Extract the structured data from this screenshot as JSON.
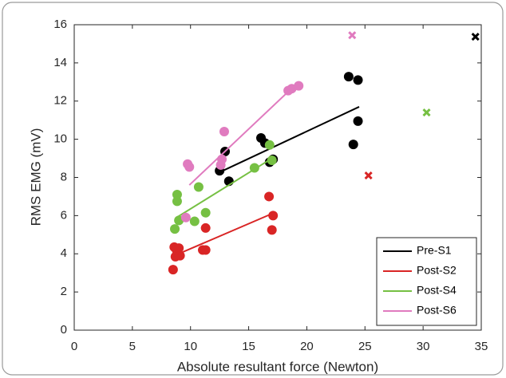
{
  "chart_data": {
    "type": "scatter",
    "x_label": "Absolute resultant force (Newton)",
    "y_label": "RMS EMG (mV)",
    "xlim": [
      0,
      35
    ],
    "xticks": [
      0,
      5,
      10,
      15,
      20,
      25,
      30,
      35
    ],
    "ylim": [
      0,
      16
    ],
    "yticks": [
      0,
      2,
      4,
      6,
      8,
      10,
      12,
      14,
      16
    ],
    "legend": "lower right",
    "series": [
      {
        "name": "Pre-S1",
        "color": "#000000",
        "x": [
          12.5,
          12.97,
          13.3,
          16.06,
          16.4,
          16.8,
          17.1,
          23.6,
          24.4,
          24.4,
          24.0
        ],
        "values": [
          8.35,
          9.36,
          7.8,
          10.07,
          9.8,
          8.8,
          8.95,
          13.28,
          13.1,
          10.95,
          9.73
        ],
        "fit": {
          "x": [
            12.6,
            24.5
          ],
          "y": [
            8.3,
            11.7
          ]
        },
        "outlier": {
          "x": 34.5,
          "y": 15.37
        }
      },
      {
        "name": "Post-S2",
        "color": "#d92525",
        "x": [
          8.5,
          8.6,
          8.7,
          8.8,
          9.0,
          9.1,
          11.05,
          11.3,
          11.3,
          16.75,
          17.1,
          17.0
        ],
        "values": [
          3.17,
          4.35,
          3.85,
          4.2,
          4.3,
          3.9,
          4.2,
          4.2,
          5.35,
          7.0,
          6.0,
          5.25
        ],
        "fit": {
          "x": [
            8.6,
            17.0
          ],
          "y": [
            3.9,
            6.1
          ]
        },
        "outlier": {
          "x": 25.3,
          "y": 8.1
        }
      },
      {
        "name": "Post-S4",
        "color": "#76c043",
        "x": [
          8.65,
          8.85,
          8.85,
          9.0,
          10.35,
          10.7,
          11.3,
          15.5,
          16.8,
          17.0
        ],
        "values": [
          5.3,
          7.1,
          6.75,
          5.75,
          5.7,
          7.5,
          6.15,
          8.5,
          9.7,
          8.9
        ],
        "fit": {
          "x": [
            8.8,
            17.0
          ],
          "y": [
            5.9,
            9.0
          ]
        },
        "outlier": {
          "x": 30.3,
          "y": 11.4
        }
      },
      {
        "name": "Post-S6",
        "color": "#e07bbf",
        "x": [
          9.6,
          9.75,
          9.9,
          12.7,
          12.6,
          12.9,
          18.4,
          18.7,
          19.3
        ],
        "values": [
          5.9,
          8.7,
          8.55,
          8.95,
          8.65,
          10.4,
          12.55,
          12.65,
          12.8
        ],
        "fit": {
          "x": [
            9.9,
            18.5
          ],
          "y": [
            7.6,
            12.55
          ]
        },
        "outlier": {
          "x": 23.9,
          "y": 15.45
        }
      }
    ]
  }
}
